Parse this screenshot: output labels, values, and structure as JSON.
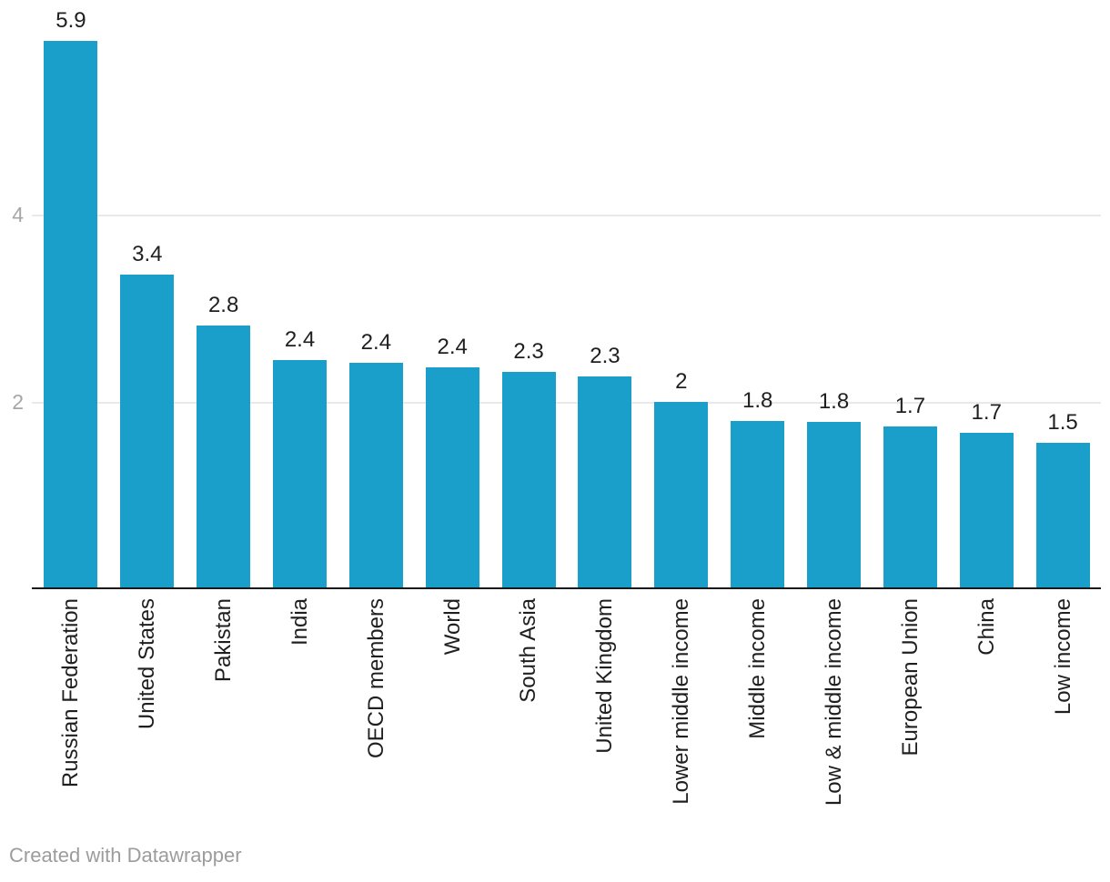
{
  "chart_data": {
    "type": "bar",
    "categories": [
      "Russian Federation",
      "United States",
      "Pakistan",
      "India",
      "OECD members",
      "World",
      "South Asia",
      "United Kingdom",
      "Lower middle income",
      "Middle income",
      "Low & middle income",
      "European Union",
      "China",
      "Low income"
    ],
    "values": [
      5.9,
      3.4,
      2.8,
      2.4,
      2.4,
      2.4,
      2.3,
      2.3,
      2,
      1.8,
      1.8,
      1.7,
      1.7,
      1.5
    ],
    "value_labels": [
      "5.9",
      "3.4",
      "2.8",
      "2.4",
      "2.4",
      "2.4",
      "2.3",
      "2.3",
      "2",
      "1.8",
      "1.8",
      "1.7",
      "1.7",
      "1.5"
    ],
    "values_precise": [
      5.85,
      3.35,
      2.8,
      2.43,
      2.41,
      2.36,
      2.31,
      2.26,
      1.99,
      1.78,
      1.77,
      1.72,
      1.66,
      1.55
    ],
    "title": "",
    "xlabel": "",
    "ylabel": "",
    "ylim": [
      0,
      6.31
    ],
    "yticks": [
      2,
      4
    ],
    "ytick_labels": [
      "2",
      "4"
    ],
    "grid": true,
    "legend_position": "none",
    "bar_color": "#199fc9",
    "x_label_rotation_degrees": -90
  },
  "footer": {
    "credit": "Created with Datawrapper"
  },
  "colors": {
    "bar": "#199fc9",
    "label": "#1f1f1f",
    "tick": "#a6a6a6",
    "grid": "#e9e9e9",
    "axis": "#1a1a1a",
    "credit": "#9c9c9c",
    "background": "#ffffff"
  }
}
